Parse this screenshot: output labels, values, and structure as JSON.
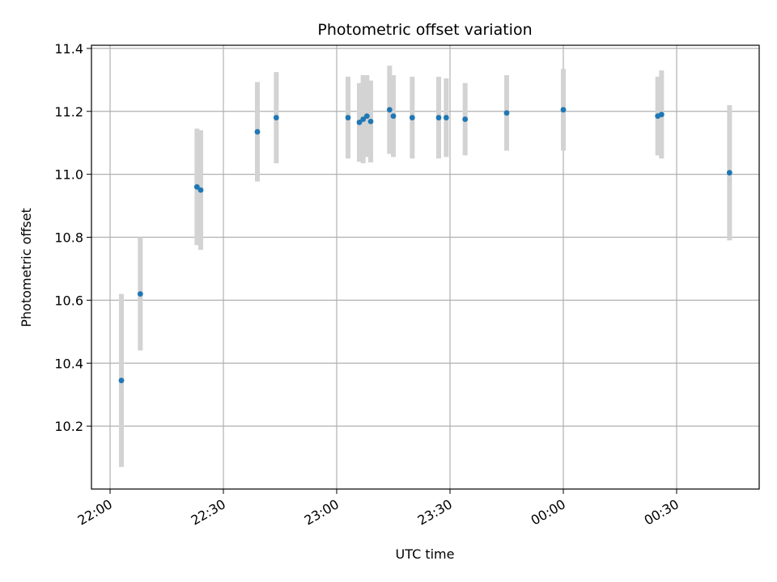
{
  "chart_data": {
    "type": "scatter",
    "title": "Photometric offset variation",
    "xlabel": "UTC time",
    "ylabel": "Photometric offset",
    "x_ticks": [
      "22:00",
      "22:30",
      "23:00",
      "23:30",
      "00:00",
      "00:30"
    ],
    "y_ticks": [
      "10.2",
      "10.4",
      "10.6",
      "10.8",
      "11.0",
      "11.2",
      "11.4"
    ],
    "ylim": [
      10.0,
      11.41
    ],
    "grid": true,
    "colors": {
      "points": "#1f77b4",
      "error_bars": "#d3d3d3",
      "grid": "#b0b0b0"
    },
    "series": [
      {
        "points": [
          {
            "time": "22:03",
            "value": 10.345,
            "err": 0.275
          },
          {
            "time": "22:08",
            "value": 10.62,
            "err": 0.18
          },
          {
            "time": "22:23",
            "value": 10.96,
            "err": 0.185
          },
          {
            "time": "22:24",
            "value": 10.95,
            "err": 0.19
          },
          {
            "time": "22:39",
            "value": 11.135,
            "err": 0.158
          },
          {
            "time": "22:44",
            "value": 11.18,
            "err": 0.145
          },
          {
            "time": "23:03",
            "value": 11.18,
            "err": 0.13
          },
          {
            "time": "23:06",
            "value": 11.165,
            "err": 0.125
          },
          {
            "time": "23:07",
            "value": 11.175,
            "err": 0.14
          },
          {
            "time": "23:08",
            "value": 11.185,
            "err": 0.13
          },
          {
            "time": "23:09",
            "value": 11.168,
            "err": 0.13
          },
          {
            "time": "23:14",
            "value": 11.205,
            "err": 0.14
          },
          {
            "time": "23:15",
            "value": 11.185,
            "err": 0.13
          },
          {
            "time": "23:20",
            "value": 11.18,
            "err": 0.13
          },
          {
            "time": "23:27",
            "value": 11.18,
            "err": 0.13
          },
          {
            "time": "23:29",
            "value": 11.18,
            "err": 0.125
          },
          {
            "time": "23:34",
            "value": 11.175,
            "err": 0.115
          },
          {
            "time": "23:45",
            "value": 11.195,
            "err": 0.12
          },
          {
            "time": "00:00",
            "value": 11.205,
            "err": 0.13
          },
          {
            "time": "00:25",
            "value": 11.185,
            "err": 0.125
          },
          {
            "time": "00:26",
            "value": 11.19,
            "err": 0.14
          },
          {
            "time": "00:44",
            "value": 11.005,
            "err": 0.215
          }
        ]
      }
    ]
  }
}
